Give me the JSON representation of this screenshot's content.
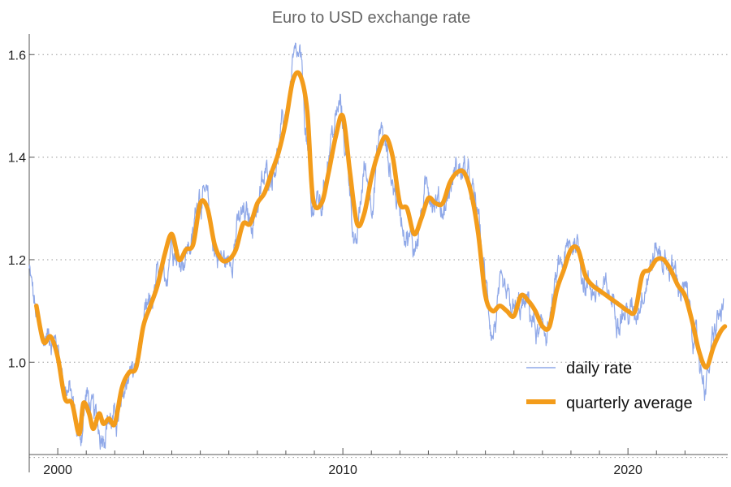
{
  "chart_data": {
    "type": "line",
    "title": "Euro to USD exchange rate",
    "xlabel": "",
    "ylabel": "",
    "xlim": [
      1999.0,
      2023.5
    ],
    "ylim": [
      0.82,
      1.64
    ],
    "grid": "horizontal dotted",
    "legend": "bottom-right",
    "x_ticks": [
      2000,
      2010,
      2020
    ],
    "x_minor_ticks": [
      2001,
      2002,
      2003,
      2004,
      2005,
      2006,
      2007,
      2008,
      2009,
      2011,
      2012,
      2013,
      2014,
      2015,
      2016,
      2017,
      2018,
      2019,
      2021,
      2022
    ],
    "y_ticks": [
      1.0,
      1.2,
      1.4,
      1.6
    ],
    "y_tick_labels": [
      "1.0",
      "1.2",
      "1.4",
      "1.6"
    ],
    "x_tick_labels": [
      "2000",
      "2010",
      "2020"
    ],
    "colors": {
      "daily": "#8fa8e8",
      "quarterly": "#f39c1b"
    },
    "series": [
      {
        "name": "daily rate",
        "style": "thin",
        "x": [
          1999.0,
          1999.1,
          1999.25,
          1999.5,
          1999.75,
          2000.0,
          2000.25,
          2000.5,
          2000.65,
          2000.8,
          2001.0,
          2001.25,
          2001.5,
          2001.75,
          2002.0,
          2002.25,
          2002.5,
          2002.75,
          2003.0,
          2003.25,
          2003.5,
          2003.75,
          2004.0,
          2004.25,
          2004.5,
          2004.75,
          2004.95,
          2005.25,
          2005.5,
          2005.75,
          2006.0,
          2006.25,
          2006.5,
          2006.75,
          2007.0,
          2007.25,
          2007.5,
          2007.75,
          2008.0,
          2008.25,
          2008.5,
          2008.75,
          2008.9,
          2009.0,
          2009.25,
          2009.5,
          2009.9,
          2010.25,
          2010.45,
          2010.75,
          2011.0,
          2011.35,
          2011.75,
          2012.0,
          2012.5,
          2012.75,
          2013.0,
          2013.5,
          2014.0,
          2014.3,
          2014.75,
          2015.0,
          2015.25,
          2015.5,
          2016.0,
          2016.5,
          2016.9,
          2017.25,
          2017.6,
          2018.0,
          2018.15,
          2018.5,
          2018.9,
          2019.5,
          2019.9,
          2020.25,
          2020.5,
          2020.75,
          2021.0,
          2021.35,
          2021.75,
          2022.0,
          2022.25,
          2022.5,
          2022.75,
          2022.9,
          2023.15,
          2023.35
        ],
        "values": [
          1.18,
          1.14,
          1.08,
          1.04,
          1.06,
          1.03,
          0.96,
          0.93,
          0.87,
          0.85,
          0.94,
          0.89,
          0.86,
          0.9,
          0.88,
          0.9,
          0.99,
          0.98,
          1.06,
          1.1,
          1.16,
          1.14,
          1.26,
          1.2,
          1.22,
          1.24,
          1.35,
          1.3,
          1.22,
          1.2,
          1.19,
          1.26,
          1.28,
          1.27,
          1.31,
          1.35,
          1.38,
          1.42,
          1.48,
          1.57,
          1.58,
          1.42,
          1.27,
          1.32,
          1.3,
          1.42,
          1.5,
          1.35,
          1.2,
          1.38,
          1.32,
          1.46,
          1.35,
          1.3,
          1.22,
          1.29,
          1.35,
          1.3,
          1.38,
          1.37,
          1.28,
          1.15,
          1.06,
          1.12,
          1.09,
          1.11,
          1.04,
          1.08,
          1.18,
          1.22,
          1.25,
          1.16,
          1.14,
          1.12,
          1.1,
          1.09,
          1.15,
          1.19,
          1.22,
          1.2,
          1.16,
          1.13,
          1.08,
          1.0,
          0.96,
          1.01,
          1.08,
          1.1
        ]
      },
      {
        "name": "quarterly average",
        "style": "thick",
        "x": [
          1999.25,
          1999.5,
          1999.75,
          2000.0,
          2000.25,
          2000.5,
          2000.75,
          2000.9,
          2001.1,
          2001.25,
          2001.45,
          2001.6,
          2001.8,
          2002.0,
          2002.25,
          2002.5,
          2002.75,
          2003.0,
          2003.25,
          2003.5,
          2003.75,
          2004.0,
          2004.25,
          2004.5,
          2004.75,
          2005.0,
          2005.25,
          2005.5,
          2005.75,
          2006.0,
          2006.25,
          2006.5,
          2006.75,
          2007.0,
          2007.25,
          2007.5,
          2007.75,
          2008.0,
          2008.25,
          2008.5,
          2008.75,
          2008.95,
          2009.25,
          2009.5,
          2009.75,
          2010.0,
          2010.25,
          2010.5,
          2010.75,
          2011.0,
          2011.25,
          2011.5,
          2011.75,
          2012.0,
          2012.25,
          2012.5,
          2012.75,
          2013.0,
          2013.25,
          2013.5,
          2013.75,
          2014.0,
          2014.25,
          2014.5,
          2014.75,
          2015.0,
          2015.25,
          2015.5,
          2015.75,
          2016.0,
          2016.25,
          2016.5,
          2016.75,
          2017.0,
          2017.25,
          2017.5,
          2017.75,
          2018.0,
          2018.25,
          2018.5,
          2018.75,
          2019.0,
          2019.25,
          2019.5,
          2019.75,
          2020.0,
          2020.25,
          2020.5,
          2020.75,
          2021.0,
          2021.25,
          2021.5,
          2021.75,
          2022.0,
          2022.25,
          2022.5,
          2022.75,
          2023.0,
          2023.25,
          2023.4
        ],
        "values": [
          1.11,
          1.04,
          1.05,
          1.01,
          0.93,
          0.92,
          0.86,
          0.92,
          0.9,
          0.87,
          0.9,
          0.88,
          0.89,
          0.88,
          0.95,
          0.98,
          0.99,
          1.07,
          1.11,
          1.15,
          1.21,
          1.25,
          1.2,
          1.22,
          1.23,
          1.31,
          1.3,
          1.23,
          1.2,
          1.2,
          1.22,
          1.27,
          1.27,
          1.31,
          1.33,
          1.37,
          1.41,
          1.47,
          1.55,
          1.56,
          1.49,
          1.32,
          1.31,
          1.37,
          1.44,
          1.48,
          1.37,
          1.27,
          1.29,
          1.36,
          1.41,
          1.44,
          1.4,
          1.31,
          1.3,
          1.25,
          1.28,
          1.32,
          1.31,
          1.31,
          1.35,
          1.37,
          1.37,
          1.33,
          1.25,
          1.13,
          1.1,
          1.11,
          1.1,
          1.09,
          1.13,
          1.12,
          1.1,
          1.07,
          1.07,
          1.14,
          1.18,
          1.22,
          1.22,
          1.17,
          1.15,
          1.14,
          1.13,
          1.12,
          1.11,
          1.1,
          1.1,
          1.17,
          1.18,
          1.2,
          1.2,
          1.18,
          1.15,
          1.13,
          1.08,
          1.02,
          0.99,
          1.03,
          1.06,
          1.07
        ]
      }
    ]
  }
}
